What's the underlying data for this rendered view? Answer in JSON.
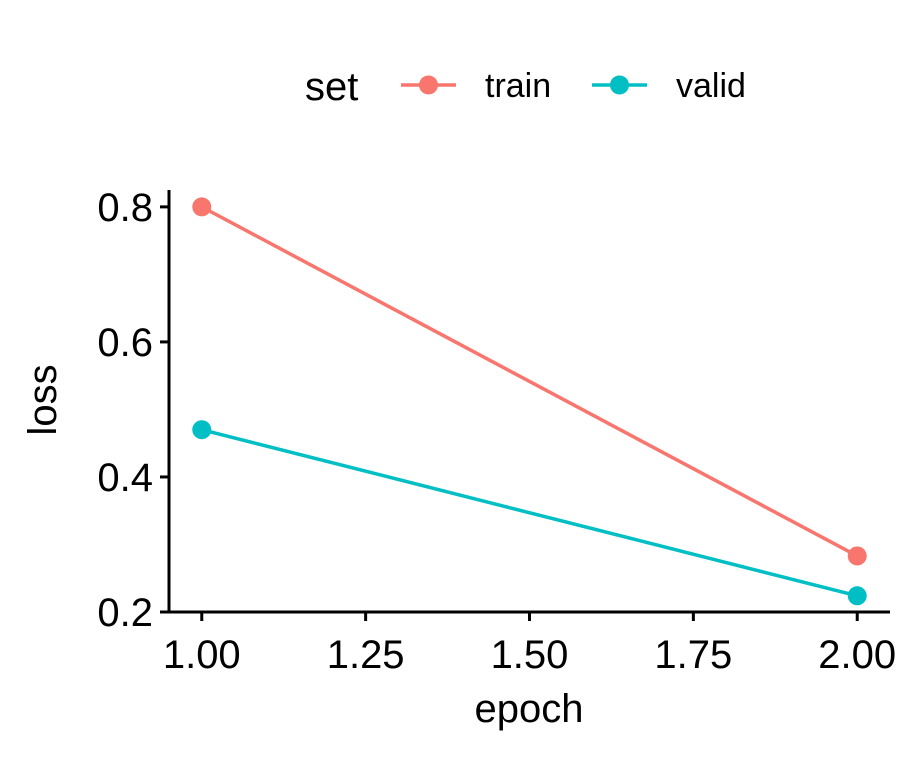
{
  "chart_data": {
    "type": "line",
    "xlabel": "epoch",
    "ylabel": "loss",
    "xlim": [
      0.95,
      2.05
    ],
    "ylim": [
      0.2,
      0.825
    ],
    "x_ticks": [
      1.0,
      1.25,
      1.5,
      1.75,
      2.0
    ],
    "x_tick_labels": [
      "1.00",
      "1.25",
      "1.50",
      "1.75",
      "2.00"
    ],
    "y_ticks": [
      0.2,
      0.4,
      0.6,
      0.8
    ],
    "y_tick_labels": [
      "0.2",
      "0.4",
      "0.6",
      "0.8"
    ],
    "grid": false,
    "legend": {
      "title": "set",
      "position": "top"
    },
    "x": [
      1.0,
      2.0
    ],
    "series": [
      {
        "name": "train",
        "color": "#F8766D",
        "values": [
          0.8,
          0.283
        ]
      },
      {
        "name": "valid",
        "color": "#00BFC4",
        "values": [
          0.47,
          0.224
        ]
      }
    ]
  }
}
